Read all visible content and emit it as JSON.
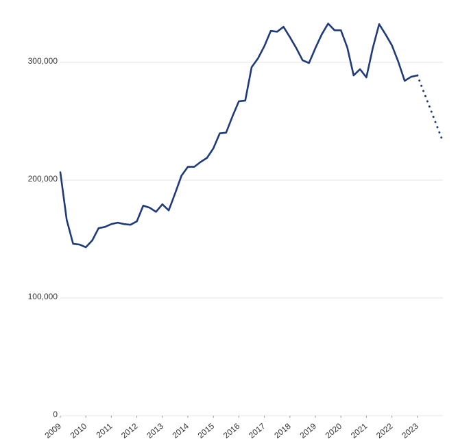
{
  "chart_data": {
    "type": "line",
    "x": [
      2009,
      2009.25,
      2009.5,
      2009.75,
      2010,
      2010.25,
      2010.5,
      2010.75,
      2011,
      2011.25,
      2011.5,
      2011.75,
      2012,
      2012.25,
      2012.5,
      2012.75,
      2013,
      2013.25,
      2013.5,
      2013.75,
      2014,
      2014.25,
      2014.5,
      2014.75,
      2015,
      2015.25,
      2015.5,
      2015.75,
      2016,
      2016.25,
      2016.5,
      2016.75,
      2017,
      2017.25,
      2017.5,
      2017.75,
      2018,
      2018.25,
      2018.5,
      2018.75,
      2019,
      2019.25,
      2019.5,
      2019.75,
      2020,
      2020.25,
      2020.5,
      2020.75,
      2021,
      2021.25,
      2021.5,
      2021.75,
      2022,
      2022.25,
      2022.5,
      2022.75,
      2023,
      2023.25,
      2023.5,
      2023.75,
      2024
    ],
    "series": [
      {
        "color": "#1f3a7a",
        "style": "solid",
        "values": [
          206700,
          166200,
          146000,
          145300,
          143000,
          148800,
          159200,
          160300,
          162700,
          163900,
          162700,
          162100,
          165000,
          178300,
          176600,
          173100,
          179500,
          174300,
          188800,
          203800,
          211300,
          211300,
          215400,
          218900,
          227000,
          239700,
          240300,
          254200,
          266900,
          267500,
          295900,
          303400,
          313800,
          326600,
          326000,
          330100,
          321400,
          312100,
          301700,
          299400,
          312100,
          323700,
          332900,
          327200,
          327200,
          312700,
          288900,
          294100,
          287200,
          312100,
          332400,
          323700,
          314400,
          300500,
          284300,
          287700,
          288900,
          null,
          null,
          null,
          null
        ]
      },
      {
        "color": "#1f3a7a",
        "style": "dotted",
        "values": [
          null,
          null,
          null,
          null,
          null,
          null,
          null,
          null,
          null,
          null,
          null,
          null,
          null,
          null,
          null,
          null,
          null,
          null,
          null,
          null,
          null,
          null,
          null,
          null,
          null,
          null,
          null,
          null,
          null,
          null,
          null,
          null,
          null,
          null,
          null,
          null,
          null,
          null,
          null,
          null,
          null,
          null,
          null,
          null,
          null,
          null,
          null,
          null,
          null,
          null,
          null,
          null,
          null,
          null,
          null,
          null,
          288900,
          274900,
          260900,
          246800,
          232800
        ]
      }
    ],
    "xlim": [
      2009,
      2024
    ],
    "xticks": [
      2009,
      2010,
      2011,
      2012,
      2013,
      2014,
      2015,
      2016,
      2017,
      2018,
      2019,
      2020,
      2021,
      2022,
      2023
    ],
    "ylim": [
      0,
      350000
    ],
    "yticks": [
      0,
      {
        "value": 100000,
        "label": "100,000"
      },
      {
        "value": 200000,
        "label": "200,000"
      },
      {
        "value": 300000,
        "label": "300,000"
      }
    ],
    "grid": true
  }
}
